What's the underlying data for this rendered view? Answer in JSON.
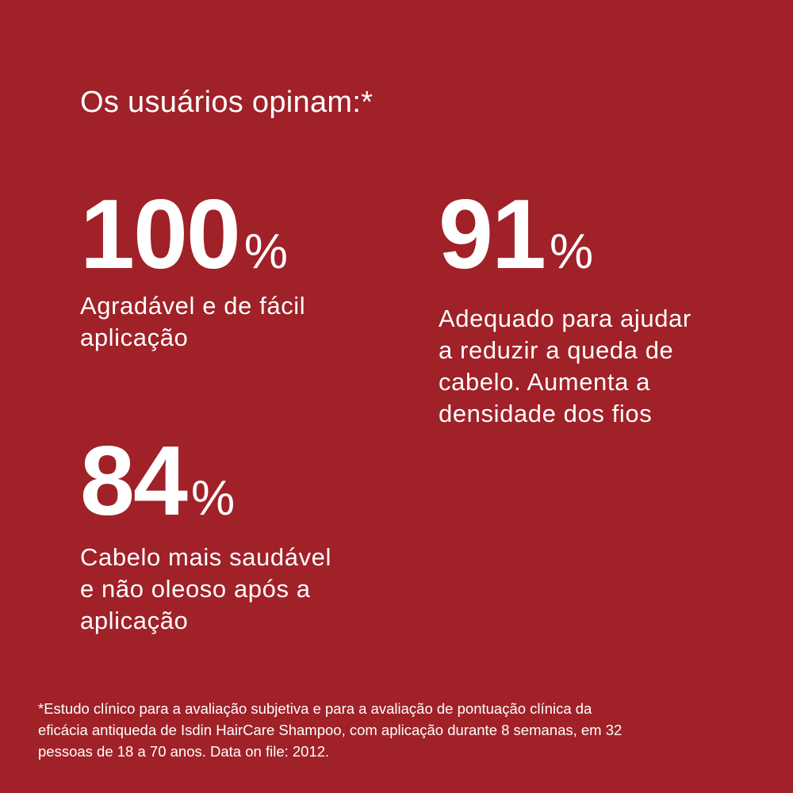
{
  "background_color": "#A02128",
  "title": "Os usuários opinam:*",
  "stats": [
    {
      "value": "100",
      "unit": "%",
      "description_lines": [
        "Agradável e de fácil",
        "aplicação"
      ]
    },
    {
      "value": "91",
      "unit": "%",
      "description_lines": [
        "Adequado para ajudar",
        "a reduzir a queda de",
        "cabelo. Aumenta a",
        "densidade dos fios"
      ]
    },
    {
      "value": "84",
      "unit": "%",
      "description_lines": [
        "Cabelo mais saudável",
        "e não oleoso após a",
        "aplicação"
      ]
    }
  ],
  "footnote_lines": [
    "*Estudo clínico para a avaliação subjetiva e para a avaliação de pontuação clínica da",
    "eficácia antiqueda de Isdin HairCare Shampoo, com aplicação durante 8 semanas, em 32",
    "pessoas de 18 a 70 anos. Data on file: 2012."
  ]
}
